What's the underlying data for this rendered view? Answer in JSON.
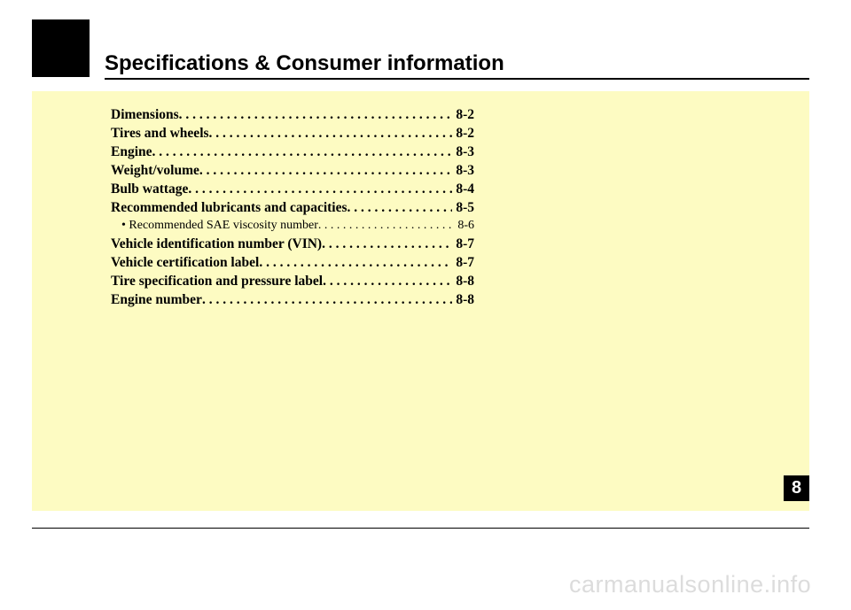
{
  "section_title": "Specifications & Consumer information",
  "chapter_number": "8",
  "watermark": "carmanualsonline.info",
  "toc": [
    {
      "label": "Dimensions",
      "page": "8-2",
      "sub": false
    },
    {
      "label": "Tires and wheels",
      "page": "8-2",
      "sub": false
    },
    {
      "label": "Engine",
      "page": "8-3",
      "sub": false
    },
    {
      "label": "Weight/volume",
      "page": "8-3",
      "sub": false
    },
    {
      "label": "Bulb wattage",
      "page": "8-4",
      "sub": false
    },
    {
      "label": "Recommended lubricants and capacities",
      "page": "8-5",
      "sub": false
    },
    {
      "label": "• Recommended SAE viscosity number",
      "page": "8-6",
      "sub": true
    },
    {
      "label": "Vehicle identification number (VIN)",
      "page": "8-7",
      "sub": false
    },
    {
      "label": "Vehicle certification label",
      "page": "8-7",
      "sub": false
    },
    {
      "label": "Tire specification and pressure label",
      "page": "8-8",
      "sub": false
    },
    {
      "label": "Engine number",
      "page": "8-8",
      "sub": false
    }
  ],
  "colors": {
    "page_bg": "#ffffff",
    "content_bg": "#fdfbc2",
    "text": "#000000",
    "watermark": "#dcdcdc"
  }
}
